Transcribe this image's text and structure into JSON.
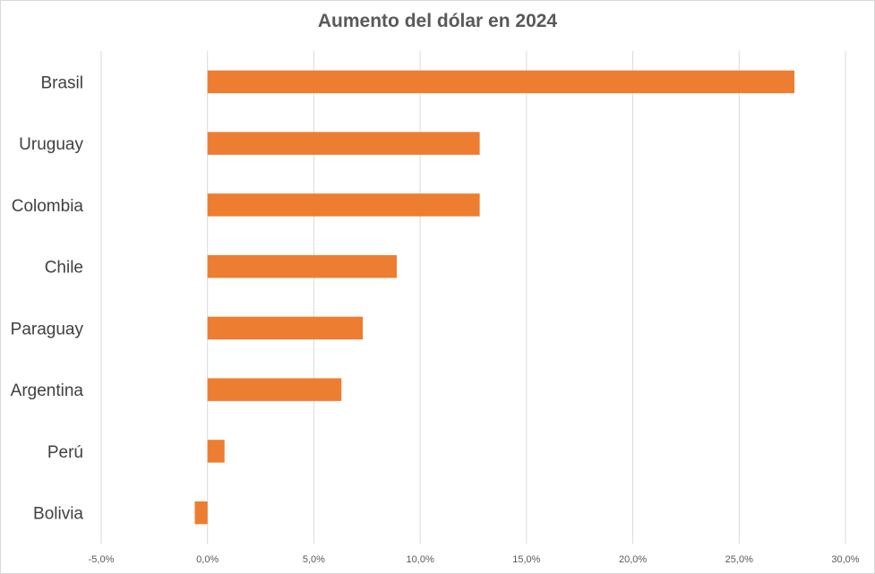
{
  "chart_data": {
    "type": "bar",
    "orientation": "horizontal",
    "title": "Aumento del dólar en 2024",
    "xlabel": "",
    "ylabel": "",
    "categories": [
      "Brasil",
      "Uruguay",
      "Colombia",
      "Chile",
      "Paraguay",
      "Argentina",
      "Perú",
      "Bolivia"
    ],
    "values": [
      27.6,
      12.8,
      12.8,
      8.9,
      7.3,
      6.3,
      0.8,
      -0.6
    ],
    "value_unit": "%",
    "xlim": [
      -5,
      30
    ],
    "x_ticks": [
      -5,
      0,
      5,
      10,
      15,
      20,
      25,
      30
    ],
    "x_tick_labels": [
      "-5,0%",
      "0,0%",
      "5,0%",
      "10,0%",
      "15,0%",
      "20,0%",
      "25,0%",
      "30,0%"
    ],
    "grid": "vertical",
    "legend": "none",
    "bar_color": "#ED7D31",
    "grid_color": "#D9D9D9"
  }
}
